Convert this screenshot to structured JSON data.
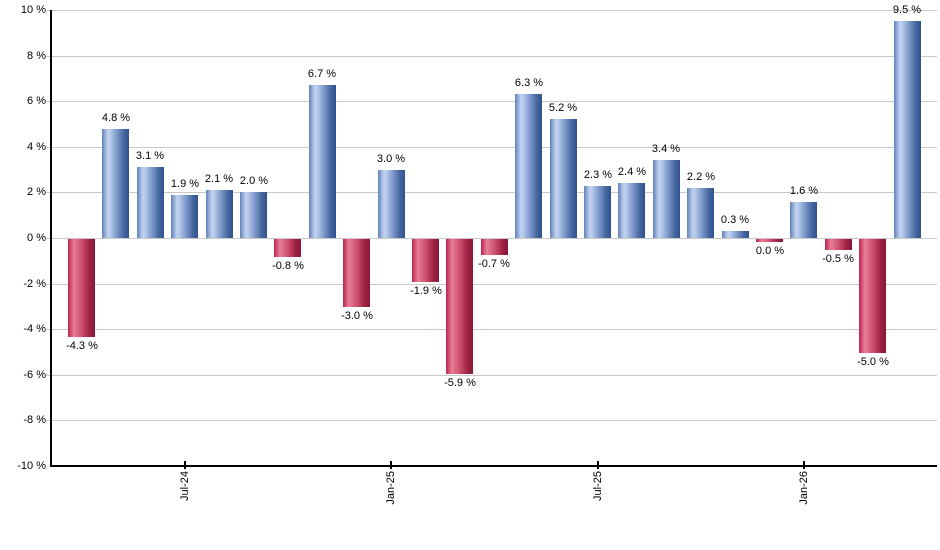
{
  "chart_data": {
    "type": "bar",
    "description": "Monthly total return bar chart, positive months blue, negative months red",
    "ylim": [
      -10,
      10
    ],
    "ytick_step": 2,
    "grid": "horizontal-only",
    "yticks": [
      {
        "value": 10,
        "label": "10 %"
      },
      {
        "value": 8,
        "label": "8 %"
      },
      {
        "value": 6,
        "label": "6 %"
      },
      {
        "value": 4,
        "label": "4 %"
      },
      {
        "value": 2,
        "label": "2 %"
      },
      {
        "value": 0,
        "label": "0 %"
      },
      {
        "value": -2,
        "label": "-2 %"
      },
      {
        "value": -4,
        "label": "-4 %"
      },
      {
        "value": -6,
        "label": "-6 %"
      },
      {
        "value": -8,
        "label": "-8 %"
      },
      {
        "value": -10,
        "label": "-10 %"
      }
    ],
    "bars": [
      {
        "value": -4.3,
        "label": "-4.3 %",
        "color": "negative"
      },
      {
        "value": 4.8,
        "label": "4.8 %",
        "color": "positive"
      },
      {
        "value": 3.1,
        "label": "3.1 %",
        "color": "positive"
      },
      {
        "value": 1.9,
        "label": "1.9 %",
        "color": "positive"
      },
      {
        "value": 2.1,
        "label": "2.1 %",
        "color": "positive"
      },
      {
        "value": 2.0,
        "label": "2.0 %",
        "color": "positive"
      },
      {
        "value": -0.8,
        "label": "-0.8 %",
        "color": "negative"
      },
      {
        "value": 6.7,
        "label": "6.7 %",
        "color": "positive"
      },
      {
        "value": -3.0,
        "label": "-3.0 %",
        "color": "negative"
      },
      {
        "value": 3.0,
        "label": "3.0 %",
        "color": "positive"
      },
      {
        "value": -1.9,
        "label": "-1.9 %",
        "color": "negative"
      },
      {
        "value": -5.9,
        "label": "-5.9 %",
        "color": "negative"
      },
      {
        "value": -0.7,
        "label": "-0.7 %",
        "color": "negative"
      },
      {
        "value": 6.3,
        "label": "6.3 %",
        "color": "positive"
      },
      {
        "value": 5.2,
        "label": "5.2 %",
        "color": "positive"
      },
      {
        "value": 2.3,
        "label": "2.3 %",
        "color": "positive"
      },
      {
        "value": 2.4,
        "label": "2.4 %",
        "color": "positive"
      },
      {
        "value": 3.4,
        "label": "3.4 %",
        "color": "positive"
      },
      {
        "value": 2.2,
        "label": "2.2 %",
        "color": "positive"
      },
      {
        "value": 0.3,
        "label": "0.3 %",
        "color": "positive"
      },
      {
        "value": 0.0,
        "label": "0.0 %",
        "color": "negative"
      },
      {
        "value": 1.6,
        "label": "1.6 %",
        "color": "positive"
      },
      {
        "value": -0.5,
        "label": "-0.5 %",
        "color": "negative"
      },
      {
        "value": -5.0,
        "label": "-5.0 %",
        "color": "negative"
      },
      {
        "value": 9.5,
        "label": "9.5 %",
        "color": "positive"
      }
    ],
    "xticks": [
      {
        "bar_index": 3,
        "label": "Jul-24"
      },
      {
        "bar_index": 9,
        "label": "Jan-25"
      },
      {
        "bar_index": 15,
        "label": "Jul-25"
      },
      {
        "bar_index": 21,
        "label": "Jan-26"
      }
    ],
    "colors": {
      "positive_gradient": [
        [
          "0%",
          "#6181b8"
        ],
        [
          "22%",
          "#c2d3f0"
        ],
        [
          "32%",
          "#b3c7e9"
        ],
        [
          "55%",
          "#7d9acb"
        ],
        [
          "80%",
          "#47689f"
        ],
        [
          "100%",
          "#2f5190"
        ]
      ],
      "negative_gradient": [
        [
          "0%",
          "#bb2450"
        ],
        [
          "22%",
          "#e77e97"
        ],
        [
          "32%",
          "#de6e89"
        ],
        [
          "55%",
          "#c84a68"
        ],
        [
          "80%",
          "#9d2144"
        ],
        [
          "100%",
          "#8a1838"
        ]
      ],
      "gridline": "#c9c9c9",
      "axis": "#000000",
      "text": "#000000",
      "background": "#ffffff"
    }
  }
}
